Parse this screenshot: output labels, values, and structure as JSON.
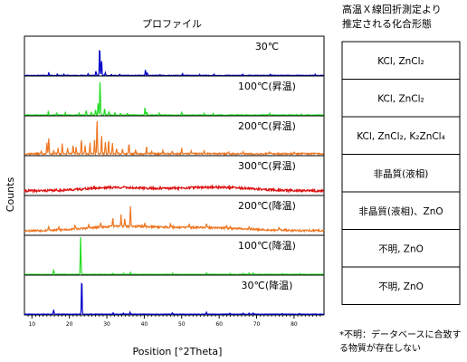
{
  "chart_data": {
    "type": "line",
    "title": "プロファイル",
    "xlabel": "Position [°2Theta]",
    "ylabel": "Counts",
    "xlim": [
      8,
      88
    ],
    "x_ticks": [
      10,
      20,
      30,
      40,
      50,
      60,
      70,
      80
    ],
    "grid": false,
    "series": [
      {
        "name": "30℃",
        "color": "#0000cc",
        "baseline": 1.5,
        "peaks": [
          [
            14.5,
            8
          ],
          [
            16.8,
            4
          ],
          [
            18.6,
            3
          ],
          [
            25.0,
            5
          ],
          [
            27.1,
            12
          ],
          [
            28.1,
            80
          ],
          [
            28.6,
            42
          ],
          [
            29.6,
            8
          ],
          [
            31.2,
            3
          ],
          [
            33.4,
            3
          ],
          [
            40.3,
            14
          ],
          [
            40.8,
            7
          ],
          [
            44.2,
            3
          ],
          [
            50.2,
            5
          ],
          [
            54.8,
            3
          ],
          [
            58.6,
            3
          ],
          [
            66.3,
            3
          ],
          [
            73.7,
            3
          ],
          [
            85.6,
            3
          ]
        ],
        "noise": 1.5,
        "seed": 11
      },
      {
        "name": "100℃(昇温)",
        "color": "#22dd22",
        "baseline": 2,
        "peaks": [
          [
            14.4,
            10
          ],
          [
            16.6,
            6
          ],
          [
            18.9,
            6
          ],
          [
            22.6,
            5
          ],
          [
            24.5,
            12
          ],
          [
            25.9,
            8
          ],
          [
            27.0,
            16
          ],
          [
            27.7,
            32
          ],
          [
            28.2,
            95
          ],
          [
            29.4,
            18
          ],
          [
            30.6,
            10
          ],
          [
            32.2,
            7
          ],
          [
            33.6,
            5
          ],
          [
            35.5,
            5
          ],
          [
            40.2,
            20
          ],
          [
            40.7,
            9
          ],
          [
            44.0,
            5
          ],
          [
            50.0,
            8
          ],
          [
            56.0,
            4
          ],
          [
            58.4,
            4
          ],
          [
            73.5,
            4
          ],
          [
            82.0,
            3
          ]
        ],
        "noise": 2,
        "seed": 23
      },
      {
        "name": "200℃(昇温)",
        "color": "#ee7722",
        "baseline": 5,
        "peaks": [
          [
            12.5,
            8
          ],
          [
            14.0,
            30
          ],
          [
            14.5,
            42
          ],
          [
            15.8,
            9
          ],
          [
            17.0,
            14
          ],
          [
            18.1,
            28
          ],
          [
            19.5,
            16
          ],
          [
            21.0,
            24
          ],
          [
            21.8,
            16
          ],
          [
            23.2,
            40
          ],
          [
            24.2,
            22
          ],
          [
            25.5,
            28
          ],
          [
            26.7,
            36
          ],
          [
            27.4,
            95
          ],
          [
            28.6,
            50
          ],
          [
            29.6,
            32
          ],
          [
            30.5,
            40
          ],
          [
            31.5,
            28
          ],
          [
            32.6,
            14
          ],
          [
            34.2,
            12
          ],
          [
            35.9,
            28
          ],
          [
            37.7,
            10
          ],
          [
            40.6,
            18
          ],
          [
            42.0,
            8
          ],
          [
            45.0,
            9
          ],
          [
            47.5,
            7
          ],
          [
            50.0,
            14
          ],
          [
            52.5,
            7
          ],
          [
            56.0,
            9
          ],
          [
            62.5,
            6
          ],
          [
            66.5,
            5
          ],
          [
            73.5,
            5
          ],
          [
            80.0,
            4
          ]
        ],
        "noise": 4,
        "seed": 37
      },
      {
        "name": "300℃(昇温)",
        "color": "#dd1111",
        "baseline": 12,
        "humps": [
          [
            32,
            8,
            9
          ],
          [
            58,
            10,
            10
          ]
        ],
        "peaks": [],
        "noise": 6,
        "seed": 41
      },
      {
        "name": "200℃(降温)",
        "color": "#ee7722",
        "baseline": 12,
        "humps": [
          [
            33,
            9,
            10
          ],
          [
            55,
            12,
            8
          ]
        ],
        "peaks": [
          [
            14.5,
            12
          ],
          [
            17.2,
            8
          ],
          [
            21.5,
            12
          ],
          [
            25.2,
            10
          ],
          [
            28.4,
            14
          ],
          [
            31.6,
            26
          ],
          [
            33.8,
            32
          ],
          [
            34.8,
            22
          ],
          [
            36.3,
            52
          ],
          [
            40.1,
            10
          ],
          [
            47.0,
            10
          ],
          [
            52.0,
            8
          ],
          [
            56.6,
            10
          ],
          [
            62.0,
            8
          ],
          [
            63.0,
            6
          ],
          [
            68.0,
            6
          ],
          [
            76.0,
            6
          ]
        ],
        "noise": 5,
        "seed": 53
      },
      {
        "name": "100℃(降温)",
        "color": "#22dd22",
        "baseline": 2,
        "peaks": [
          [
            15.8,
            13
          ],
          [
            23.0,
            100
          ],
          [
            31.6,
            3
          ],
          [
            34.5,
            3
          ],
          [
            36.3,
            5
          ],
          [
            47.6,
            3
          ],
          [
            56.6,
            4
          ],
          [
            62.9,
            3
          ],
          [
            66.4,
            3
          ],
          [
            68.0,
            3
          ],
          [
            69.1,
            3
          ],
          [
            76.9,
            2
          ],
          [
            81.4,
            2
          ]
        ],
        "noise": 1,
        "seed": 67
      },
      {
        "name": "30℃(降温)",
        "color": "#0000cc",
        "baseline": 2,
        "peaks": [
          [
            15.8,
            12
          ],
          [
            23.3,
            100
          ],
          [
            31.7,
            4
          ],
          [
            34.4,
            3
          ],
          [
            36.2,
            5
          ],
          [
            47.5,
            4
          ],
          [
            56.6,
            5
          ],
          [
            62.9,
            3
          ],
          [
            66.4,
            3
          ],
          [
            68.0,
            3
          ],
          [
            69.1,
            3
          ],
          [
            76.9,
            2
          ],
          [
            81.4,
            2
          ]
        ],
        "noise": 1,
        "seed": 79
      }
    ]
  },
  "side_panel": {
    "title_line1": "高温Ｘ線回折測定より",
    "title_line2": "推定される化合形態",
    "rows": [
      "KCl, ZnCl₂",
      "KCl, ZnCl₂",
      "KCl, ZnCl₂, K₂ZnCl₄",
      "非晶質(液相)",
      "非晶質(液相)、ZnO",
      "不明, ZnO",
      "不明, ZnO"
    ],
    "note_line1": "*不明：データベースに合致す",
    "note_line2": "る物質が存在しない"
  }
}
